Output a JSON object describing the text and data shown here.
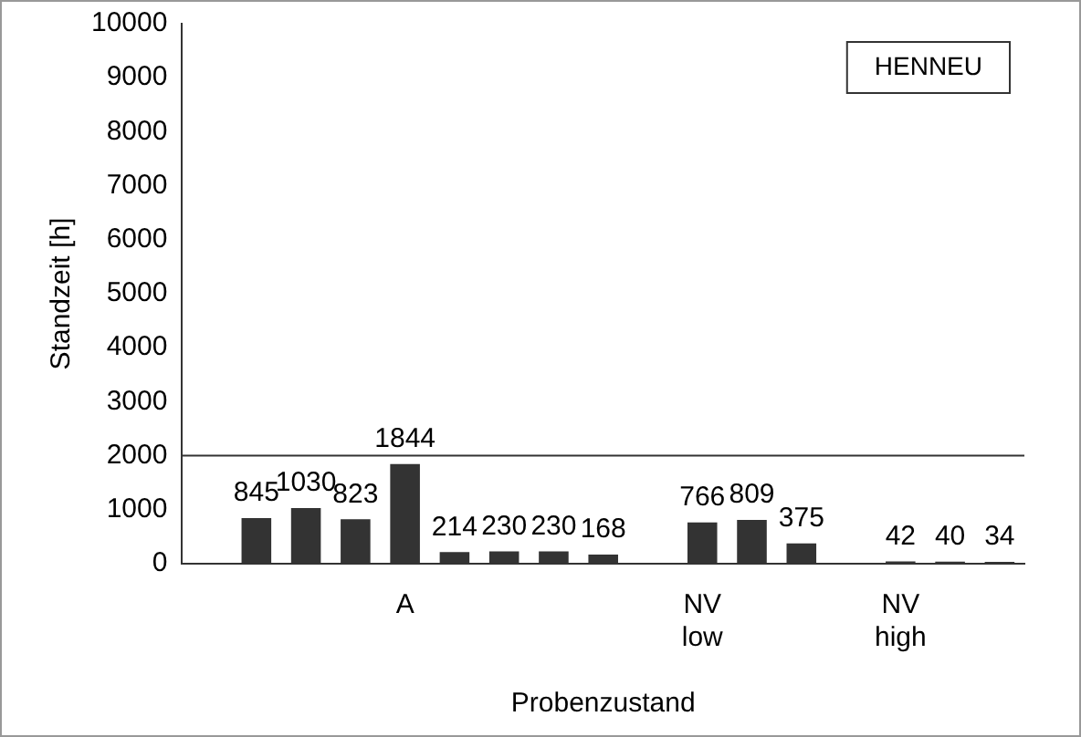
{
  "chart_data": {
    "type": "bar",
    "ylabel": "Standzeit [h]",
    "xlabel": "Probenzustand",
    "categories": [
      null,
      null,
      null,
      null,
      "A",
      null,
      null,
      null,
      null,
      null,
      "NV\nlow",
      null,
      null,
      null,
      "NV\nhigh",
      null,
      null
    ],
    "values": [
      null,
      845,
      1030,
      823,
      1844,
      214,
      230,
      230,
      168,
      null,
      766,
      809,
      375,
      null,
      42,
      40,
      34
    ],
    "color": "#333333",
    "data_labels": true,
    "ylim": [
      0,
      10000
    ],
    "yticks": [
      0,
      1000,
      2000,
      3000,
      4000,
      5000,
      6000,
      7000,
      8000,
      9000,
      10000
    ],
    "grid": false,
    "legend": false,
    "ref_lines": [
      {
        "axis": "y",
        "value": 2000,
        "color": "#333333"
      }
    ],
    "annotations": [
      "HENNEU"
    ]
  }
}
